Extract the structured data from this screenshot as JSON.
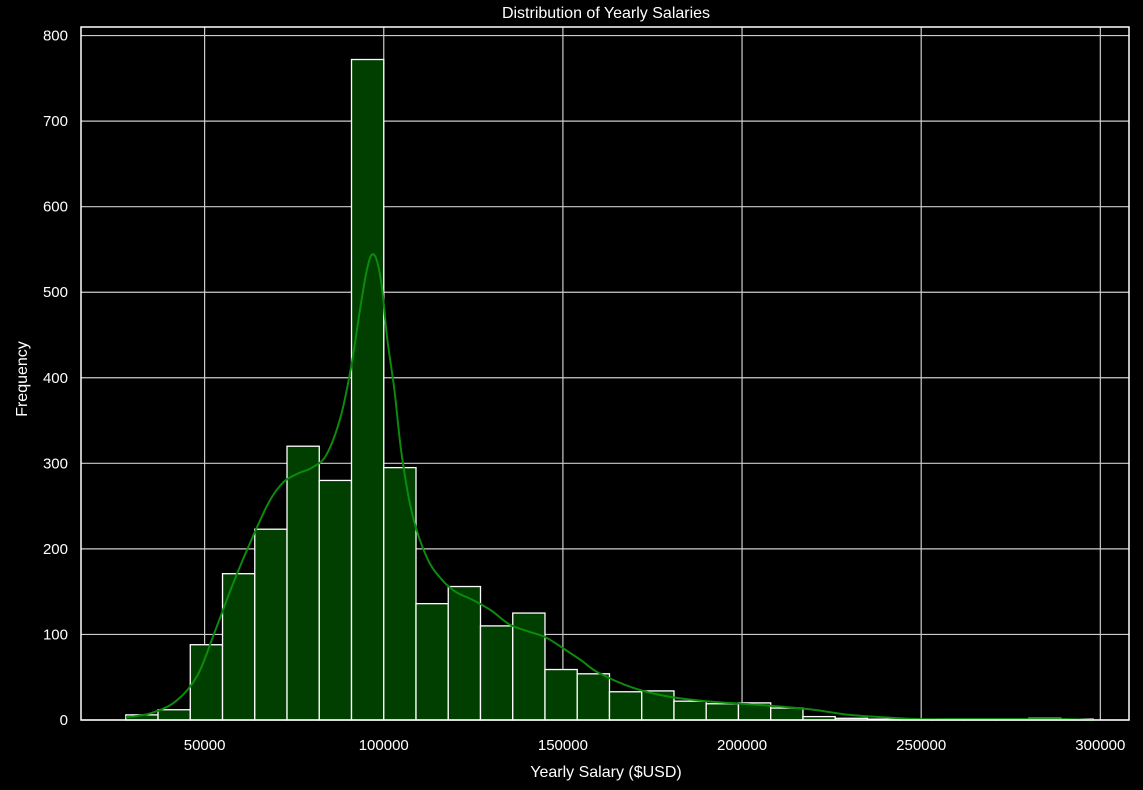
{
  "chart_data": {
    "type": "bar",
    "title": "Distribution of Yearly Salaries",
    "xlabel": "Yearly Salary ($USD)",
    "ylabel": "Frequency",
    "xlim": [
      15500,
      308000
    ],
    "ylim": [
      0,
      810
    ],
    "xticks": [
      50000,
      100000,
      150000,
      200000,
      250000,
      300000
    ],
    "yticks": [
      0,
      100,
      200,
      300,
      400,
      500,
      600,
      700,
      800
    ],
    "grid": true,
    "bins": [
      {
        "x0": 28000,
        "x1": 37000,
        "value": 6
      },
      {
        "x0": 37000,
        "x1": 46000,
        "value": 12
      },
      {
        "x0": 46000,
        "x1": 55000,
        "value": 88
      },
      {
        "x0": 55000,
        "x1": 64000,
        "value": 171
      },
      {
        "x0": 64000,
        "x1": 73000,
        "value": 223
      },
      {
        "x0": 73000,
        "x1": 82000,
        "value": 320
      },
      {
        "x0": 82000,
        "x1": 91000,
        "value": 280
      },
      {
        "x0": 91000,
        "x1": 100000,
        "value": 772
      },
      {
        "x0": 100000,
        "x1": 109000,
        "value": 295
      },
      {
        "x0": 109000,
        "x1": 118000,
        "value": 136
      },
      {
        "x0": 118000,
        "x1": 127000,
        "value": 156
      },
      {
        "x0": 127000,
        "x1": 136000,
        "value": 110
      },
      {
        "x0": 136000,
        "x1": 145000,
        "value": 125
      },
      {
        "x0": 145000,
        "x1": 154000,
        "value": 59
      },
      {
        "x0": 154000,
        "x1": 163000,
        "value": 54
      },
      {
        "x0": 163000,
        "x1": 172000,
        "value": 33
      },
      {
        "x0": 172000,
        "x1": 181000,
        "value": 34
      },
      {
        "x0": 181000,
        "x1": 190000,
        "value": 22
      },
      {
        "x0": 190000,
        "x1": 199000,
        "value": 19
      },
      {
        "x0": 199000,
        "x1": 208000,
        "value": 20
      },
      {
        "x0": 208000,
        "x1": 217000,
        "value": 14
      },
      {
        "x0": 217000,
        "x1": 226000,
        "value": 4
      },
      {
        "x0": 226000,
        "x1": 235000,
        "value": 2
      },
      {
        "x0": 235000,
        "x1": 244000,
        "value": 1
      },
      {
        "x0": 244000,
        "x1": 253000,
        "value": 1
      },
      {
        "x0": 253000,
        "x1": 262000,
        "value": 1
      },
      {
        "x0": 262000,
        "x1": 271000,
        "value": 1
      },
      {
        "x0": 271000,
        "x1": 280000,
        "value": 1
      },
      {
        "x0": 280000,
        "x1": 289000,
        "value": 2
      },
      {
        "x0": 289000,
        "x1": 298000,
        "value": 1
      }
    ],
    "kde": {
      "x": [
        28000,
        35000,
        42000,
        48000,
        53000,
        58000,
        63000,
        68000,
        72000,
        76000,
        80000,
        84000,
        88000,
        91000,
        93000,
        95000,
        96500,
        98000,
        99500,
        101000,
        103000,
        105000,
        108000,
        112000,
        116000,
        120000,
        125000,
        130000,
        135000,
        140000,
        145000,
        150000,
        155000,
        160000,
        170000,
        180000,
        190000,
        200000,
        210000,
        220000,
        230000,
        240000,
        250000,
        260000,
        270000,
        280000,
        290000,
        298000
      ],
      "y": [
        3,
        8,
        22,
        52,
        105,
        160,
        210,
        255,
        278,
        288,
        295,
        310,
        355,
        415,
        470,
        520,
        543,
        538,
        505,
        445,
        385,
        310,
        240,
        190,
        165,
        150,
        140,
        128,
        112,
        104,
        97,
        84,
        70,
        55,
        37,
        27,
        22,
        19,
        16,
        12,
        6,
        3,
        1,
        1,
        1,
        1,
        1,
        0
      ]
    },
    "colors": {
      "background": "#000000",
      "bar_fill": "#003f00",
      "bar_edge": "#ffffff",
      "kde_line": "#0b8a0b",
      "grid": "#cccccc",
      "text": "#ffffff"
    }
  }
}
